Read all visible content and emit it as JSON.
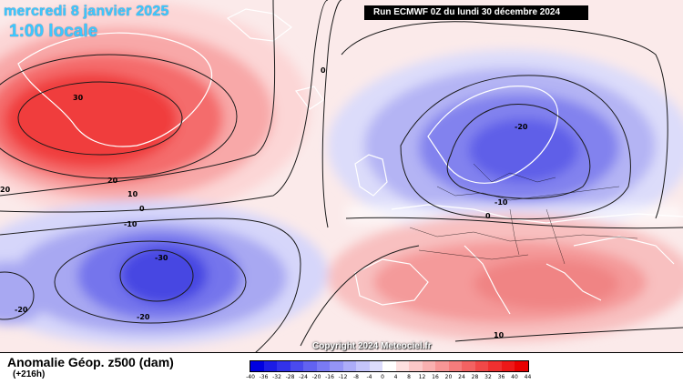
{
  "header": {
    "date": "mercredi 8 janvier 2025",
    "local_time": "1:00 locale",
    "run": "Run ECMWF 0Z du lundi 30 décembre 2024"
  },
  "footer": {
    "parameter": "Anomalie Géop. z500 (dam)",
    "lead_time": "(+216h)",
    "copyright": "Copyright 2024 Meteociel.fr"
  },
  "contour_labels": [
    "30",
    "20",
    "10",
    "0",
    "-10",
    "-20",
    "-30",
    "20",
    "-20",
    "-20",
    "0",
    "-10",
    "0",
    "10",
    "-20"
  ],
  "legend": {
    "labels": [
      "-40",
      "-36",
      "-32",
      "-28",
      "-24",
      "-20",
      "-16",
      "-12",
      "-8",
      "-4",
      "0",
      "4",
      "8",
      "12",
      "16",
      "20",
      "24",
      "28",
      "32",
      "36",
      "40",
      "44"
    ],
    "colors": [
      "#0000e0",
      "#1c1ce6",
      "#3232ea",
      "#4a4aee",
      "#6262f1",
      "#7a7af3",
      "#9494f6",
      "#acacf8",
      "#c4c4fa",
      "#dcdcfc",
      "#ffffff",
      "#fde0e0",
      "#fbc8c8",
      "#f9b0b0",
      "#f79696",
      "#f57c7c",
      "#f36262",
      "#f14848",
      "#ef3030",
      "#ed1818",
      "#e80000"
    ]
  },
  "colors": {
    "title_text": "#3cc8ff",
    "warm_anomaly": "#ff2a2a",
    "cold_anomaly": "#3a3ad8"
  }
}
